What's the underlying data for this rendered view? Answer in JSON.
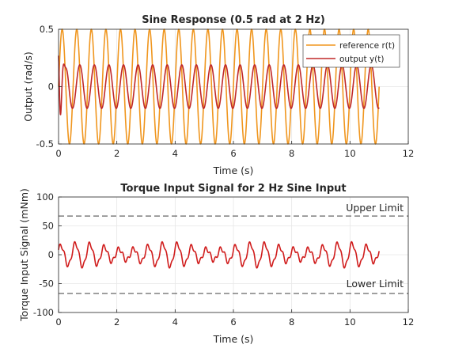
{
  "chart_data": [
    {
      "type": "line",
      "title": "Sine Response (0.5 rad at 2 Hz)",
      "xlabel": "Time (s)",
      "ylabel": "Output (rad/s)",
      "xlim": [
        0,
        12
      ],
      "ylim": [
        -0.5,
        0.5
      ],
      "xticks": [
        0,
        2,
        4,
        6,
        8,
        10,
        12
      ],
      "yticks": [
        -0.5,
        0,
        0.5
      ],
      "ytick_labels": [
        "-0.5",
        "0",
        "0.5"
      ],
      "grid": true,
      "legend_position": "top-right",
      "series": [
        {
          "name": "reference r(t)",
          "color": "#f0961e",
          "function": "sine",
          "amplitude": 0.5,
          "frequency_hz": 2,
          "phase_deg": 0,
          "x_range": [
            0,
            11
          ]
        },
        {
          "name": "output y(t)",
          "color": "#c02828",
          "function": "sine",
          "amplitude": 0.19,
          "frequency_hz": 2,
          "phase_deg": -75,
          "initial_value": 0.27,
          "x_range": [
            0,
            11
          ]
        }
      ]
    },
    {
      "type": "line",
      "title": "Torque Input Signal for 2 Hz Sine Input",
      "xlabel": "Time (s)",
      "ylabel": "Torque Input Signal (mNm)",
      "xlim": [
        0,
        12
      ],
      "ylim": [
        -100,
        100
      ],
      "xticks": [
        0,
        2,
        4,
        6,
        8,
        10,
        12
      ],
      "yticks": [
        -100,
        -50,
        0,
        50,
        100
      ],
      "grid": true,
      "series": [
        {
          "color": "#d01c1c",
          "function": "sine",
          "amplitude": 15,
          "frequency_hz": 2,
          "x_range": [
            0,
            11
          ]
        }
      ],
      "reference_lines": [
        {
          "label": "Upper Limit",
          "y": 67
        },
        {
          "label": "Lower Limit",
          "y": -67
        }
      ]
    }
  ]
}
